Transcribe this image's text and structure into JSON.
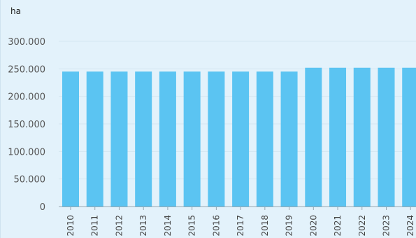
{
  "chart_data": {
    "type": "bar",
    "title": "",
    "xlabel": "",
    "ylabel": "ha",
    "categories": [
      "2010",
      "2011",
      "2012",
      "2013",
      "2014",
      "2015",
      "2016",
      "2017",
      "2018",
      "2019",
      "2020",
      "2021",
      "2022",
      "2023",
      "2024"
    ],
    "values": [
      245000,
      245000,
      245000,
      245000,
      245000,
      245000,
      245000,
      245000,
      245000,
      245000,
      252000,
      252000,
      252000,
      252000,
      252000
    ],
    "ylim": [
      0,
      300000
    ],
    "yticks": [
      {
        "value": 0,
        "label": "0"
      },
      {
        "value": 50000,
        "label": "50.000"
      },
      {
        "value": 100000,
        "label": "100.000"
      },
      {
        "value": 150000,
        "label": "150.000"
      },
      {
        "value": 200000,
        "label": "200.000"
      },
      {
        "value": 250000,
        "label": "250.000"
      },
      {
        "value": 300000,
        "label": "300.000"
      }
    ],
    "grid": true,
    "legend": "none",
    "colors": {
      "bar": "#5bc4f2",
      "background": "#e3f2fb",
      "grid": "#d4e6f1",
      "axis": "#9aa7b0"
    }
  }
}
